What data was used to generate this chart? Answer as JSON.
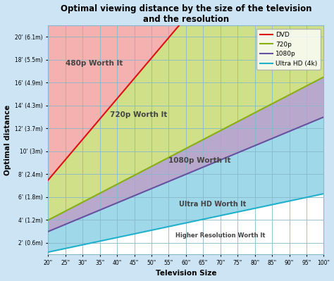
{
  "title": "Optimal viewing distance by the size of the television\nand the resolution",
  "xlabel": "Television Size",
  "ylabel": "Optimal distance",
  "x_ticks": [
    20,
    25,
    30,
    35,
    40,
    45,
    50,
    55,
    60,
    65,
    70,
    75,
    80,
    85,
    90,
    95,
    100
  ],
  "x_tick_labels": [
    "20\"",
    "25\"",
    "30\"",
    "35\"",
    "40\"",
    "45\"",
    "50\"",
    "55\"",
    "60\"",
    "65\"",
    "70\"",
    "75\"",
    "80\"",
    "85\"",
    "90\"",
    "95\"",
    "100\""
  ],
  "y_ticks": [
    2,
    4,
    6,
    8,
    10,
    12,
    14,
    16,
    18,
    20
  ],
  "y_tick_labels": [
    "2' (0.6m)",
    "4' (1.2m)",
    "6' (1.8m)",
    "8' (2.4m)",
    "10' (3m)",
    "12' (3.7m)",
    "14' (4.3m)",
    "16' (4.9m)",
    "18' (5.5m)",
    "20' (6.1m)"
  ],
  "xlim": [
    20,
    100
  ],
  "ylim": [
    1,
    21
  ],
  "color_480p": "#f5b0b0",
  "color_720p": "#cfe088",
  "color_1080p": "#b8a8cc",
  "color_uhd": "#9fd8e8",
  "color_white": "#ffffff",
  "line_dvd": "#dd1111",
  "line_720p": "#88b010",
  "line_1080p": "#6850a0",
  "line_uhd": "#20b0cc",
  "bg_color": "#cce4f4",
  "grid_color": "#88b8cc",
  "legend_labels": [
    "DVD",
    "720p",
    "1080p",
    "Ultra HD (4k)"
  ],
  "label_480p": "480p Worth It",
  "label_720p": "720p Worth It",
  "label_1080p": "1080p Worth It",
  "label_uhd": "Ultra HD Worth It",
  "label_higher": "Higher Resolution Worth It",
  "dvd_x1": 20,
  "dvd_y1": 7.5,
  "dvd_x2": 58,
  "dvd_y2": 21,
  "p720_x1": 20,
  "p720_y1": 4.0,
  "p720_x2": 100,
  "p720_y2": 16.5,
  "p1080_x1": 20,
  "p1080_y1": 3.0,
  "p1080_x2": 100,
  "p1080_y2": 13.0,
  "uhd_x1": 20,
  "uhd_y1": 1.2,
  "uhd_x2": 100,
  "uhd_y2": 6.3
}
